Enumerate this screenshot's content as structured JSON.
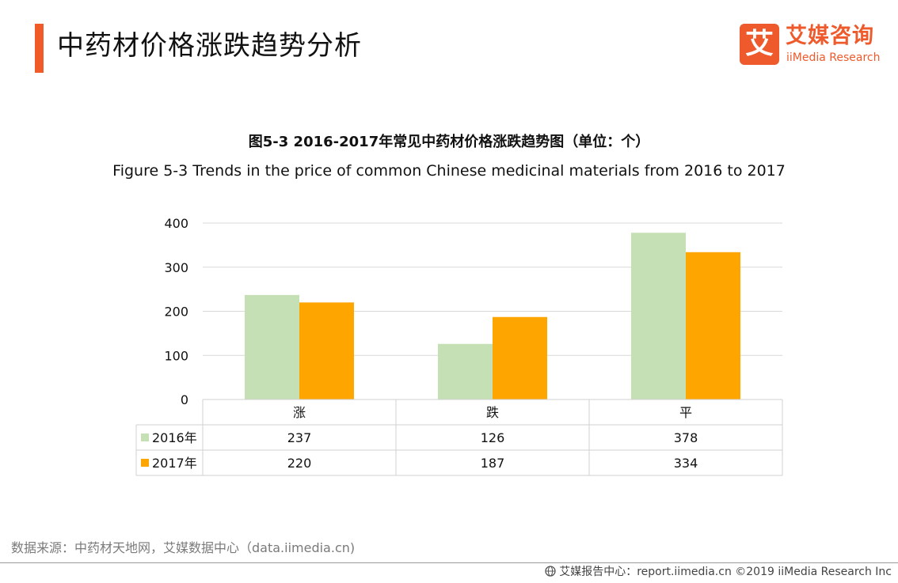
{
  "header": {
    "title": "中药材价格涨跌趋势分析",
    "logo_mark": "艾",
    "logo_cn": "艾媒咨询",
    "logo_en": "iiMedia Research"
  },
  "chart_data": {
    "type": "bar",
    "title": "图5-3 2016-2017年常见中药材价格涨跌趋势图（单位：个）",
    "subtitle": "Figure 5-3 Trends in the price of common Chinese medicinal  materials from 2016 to 2017",
    "categories": [
      "涨",
      "跌",
      "平"
    ],
    "series": [
      {
        "name": "2016年",
        "values": [
          237,
          126,
          378
        ],
        "color": "#c5e0b4"
      },
      {
        "name": "2017年",
        "values": [
          220,
          187,
          334
        ],
        "color": "#ffa500"
      }
    ],
    "ylim": [
      0,
      400
    ],
    "yticks": [
      0,
      100,
      200,
      300,
      400
    ],
    "grid": true,
    "legend": "data-table-below",
    "data_table": true
  },
  "footer": {
    "source": "数据来源：中药材天地网，艾媒数据中心（data.iimedia.cn)",
    "credit": "艾媒报告中心：report.iimedia.cn  ©2019  iiMedia Research  Inc"
  }
}
